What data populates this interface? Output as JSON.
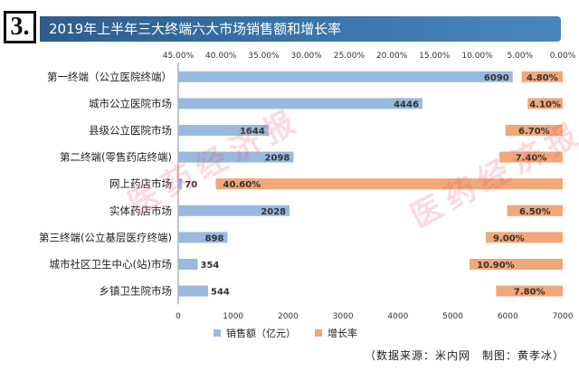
{
  "header": {
    "number": "3.",
    "title": "2019年上半年三大终端六大市场销售额和增长率"
  },
  "source_note": "（数据来源：米内网　制图：黄孝冰）",
  "watermark": "医药经济报",
  "colors": {
    "sales": "#9ab9de",
    "growth": "#f0a779",
    "axis": "#888888",
    "text": "#222222"
  },
  "chart_data": {
    "type": "bar",
    "orientation": "horizontal",
    "categories": [
      "第一终端（公立医院终端）",
      "城市公立医院市场",
      "县级公立医院市场",
      "第二终端(零售药店终端)",
      "网上药店市场",
      "实体药店市场",
      "第三终端(公立基层医疗终端)",
      "城市社区卫生中心(站)市场",
      "乡镇卫生院市场"
    ],
    "series": [
      {
        "name": "销售额（亿元）",
        "axis": "bottom",
        "values": [
          6090,
          4446,
          1644,
          2098,
          70,
          2028,
          898,
          354,
          544
        ],
        "labels": [
          "6090",
          "4446",
          "1644",
          "2098",
          "70",
          "2028",
          "898",
          "354",
          "544"
        ]
      },
      {
        "name": "增长率",
        "axis": "top-reversed",
        "values": [
          4.8,
          4.1,
          6.7,
          7.4,
          40.6,
          6.5,
          9.0,
          10.9,
          7.8
        ],
        "labels": [
          "4.80%",
          "4.10%",
          "6.70%",
          "7.40%",
          "40.60%",
          "6.50%",
          "9.00%",
          "10.90%",
          "7.80%"
        ]
      }
    ],
    "x_bottom": {
      "min": 0,
      "max": 7000,
      "ticks": [
        "0",
        "1000",
        "2000",
        "3000",
        "4000",
        "5000",
        "6000",
        "7000"
      ]
    },
    "x_top": {
      "min": 0,
      "max": 45,
      "reversed": true,
      "ticks": [
        "45.00%",
        "40.00%",
        "35.00%",
        "30.00%",
        "25.00%",
        "20.00%",
        "15.00%",
        "10.00%",
        "5.00%",
        "0.00%"
      ]
    },
    "legend_position": "bottom"
  }
}
